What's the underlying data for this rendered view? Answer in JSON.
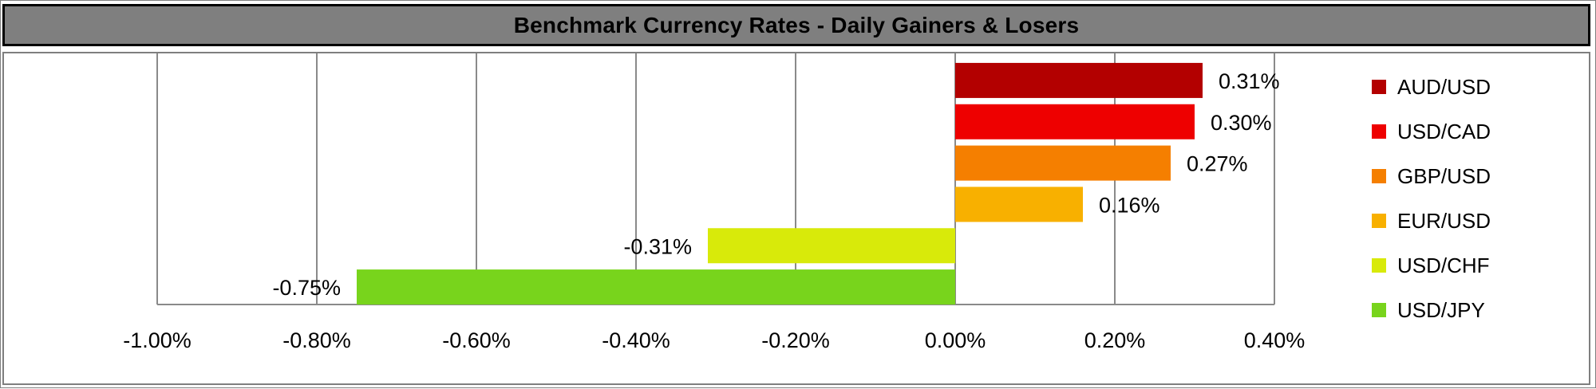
{
  "chart_data": {
    "type": "bar",
    "orientation": "horizontal",
    "title": "Benchmark Currency Rates - Daily Gainers & Losers",
    "categories": [
      "AUD/USD",
      "USD/CAD",
      "GBP/USD",
      "EUR/USD",
      "USD/CHF",
      "USD/JPY"
    ],
    "values": [
      0.31,
      0.3,
      0.27,
      0.16,
      -0.31,
      -0.75
    ],
    "value_labels": [
      "0.31%",
      "0.30%",
      "0.27%",
      "0.16%",
      "-0.31%",
      "-0.75%"
    ],
    "colors": [
      "#b30000",
      "#ee0000",
      "#f57f00",
      "#f8b000",
      "#d8ea0a",
      "#78d41c"
    ],
    "xlim": [
      -1.0,
      0.4
    ],
    "x_ticks": [
      -1.0,
      -0.8,
      -0.6,
      -0.4,
      -0.2,
      0.0,
      0.2,
      0.4
    ],
    "x_tick_labels": [
      "-1.00%",
      "-0.80%",
      "-0.60%",
      "-0.40%",
      "-0.20%",
      "0.00%",
      "0.20%",
      "0.40%"
    ],
    "grid": true,
    "legend_position": "right"
  }
}
